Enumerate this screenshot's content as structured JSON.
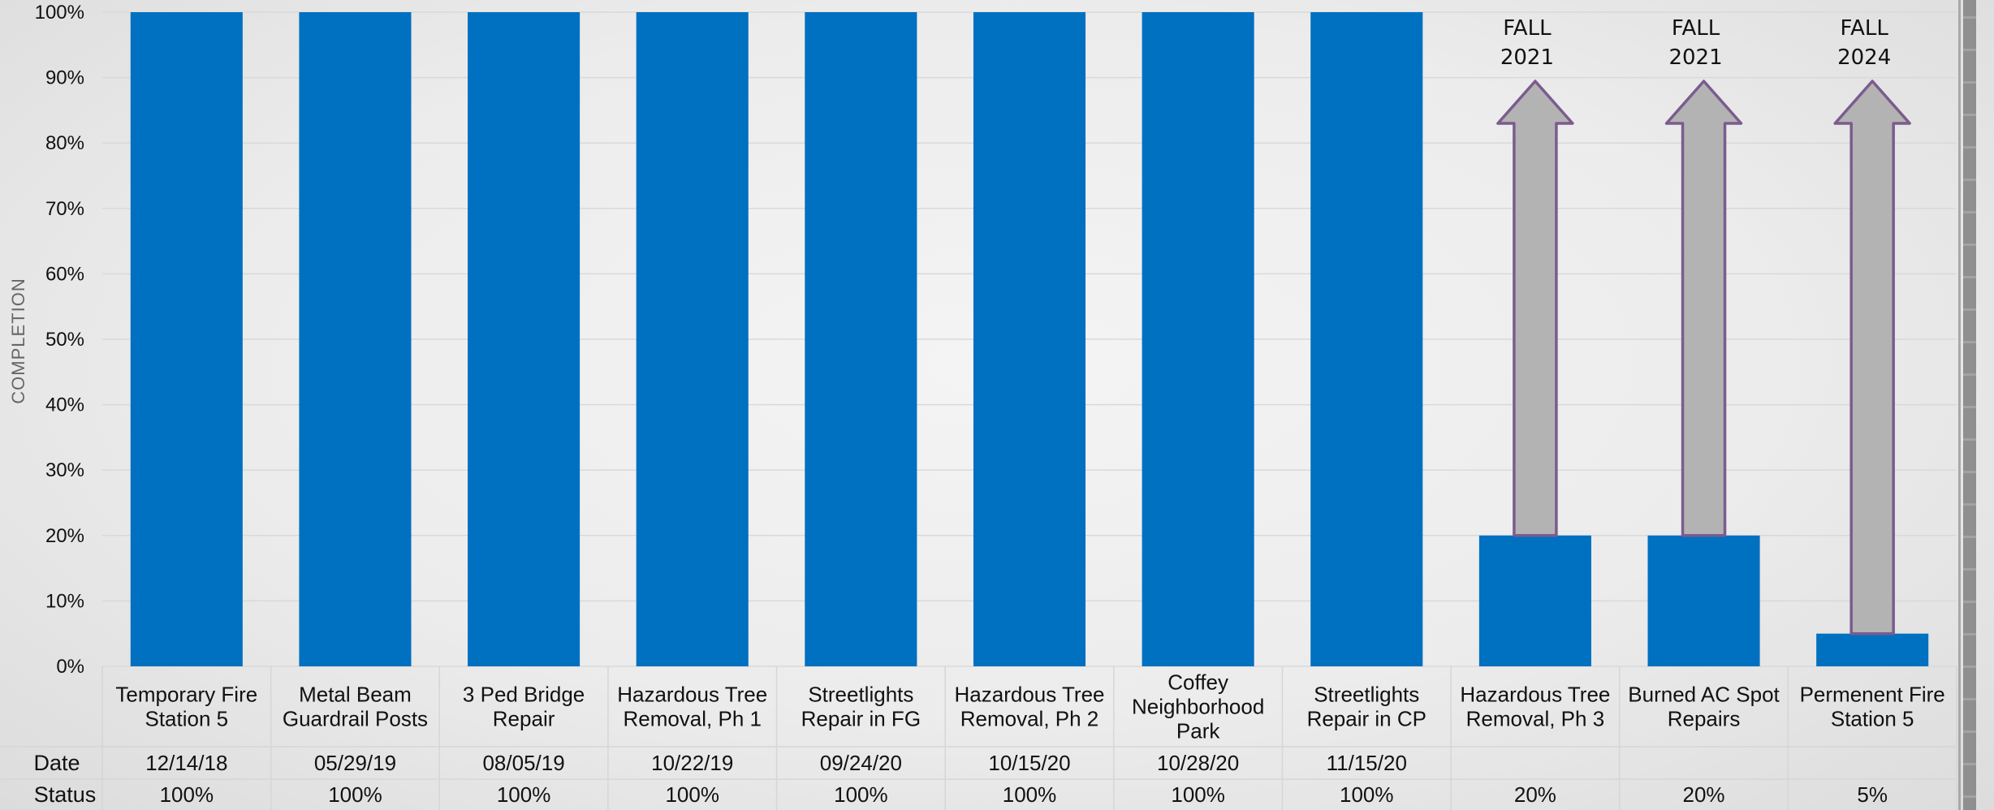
{
  "chart_data": {
    "type": "bar",
    "ylabel": "COMPLETION",
    "ylim": [
      0,
      100
    ],
    "yticks": [
      "0%",
      "10%",
      "20%",
      "30%",
      "40%",
      "50%",
      "60%",
      "70%",
      "80%",
      "90%",
      "100%"
    ],
    "grid": true,
    "categories": [
      [
        "Temporary Fire",
        "Station 5"
      ],
      [
        "Metal Beam",
        "Guardrail Posts"
      ],
      [
        "3 Ped Bridge",
        "Repair"
      ],
      [
        "Hazardous Tree",
        "Removal, Ph 1"
      ],
      [
        "Streetlights",
        "Repair in FG"
      ],
      [
        "Hazardous Tree",
        "Removal, Ph 2"
      ],
      [
        "Coffey",
        "Neighborhood",
        "Park"
      ],
      [
        "Streetlights",
        "Repair in CP"
      ],
      [
        "Hazardous Tree",
        "Removal, Ph 3"
      ],
      [
        "Burned AC Spot",
        "Repairs"
      ],
      [
        "Permenent Fire",
        "Station 5"
      ]
    ],
    "values": [
      100,
      100,
      100,
      100,
      100,
      100,
      100,
      100,
      20,
      20,
      5
    ],
    "bar_color": "#0070c0",
    "table": {
      "row_labels": [
        "Date",
        "Status"
      ],
      "dates": [
        "12/14/18",
        "05/29/19",
        "08/05/19",
        "10/22/19",
        "09/24/20",
        "10/15/20",
        "10/28/20",
        "11/15/20",
        "",
        "",
        ""
      ],
      "status": [
        "100%",
        "100%",
        "100%",
        "100%",
        "100%",
        "100%",
        "100%",
        "100%",
        "20%",
        "20%",
        "5%"
      ]
    },
    "annotations": [
      {
        "category_index": 8,
        "lines": [
          "FALL",
          "2021"
        ]
      },
      {
        "category_index": 9,
        "lines": [
          "FALL",
          "2021"
        ]
      },
      {
        "category_index": 10,
        "lines": [
          "FALL",
          "2024"
        ]
      }
    ],
    "arrow_fill": "#b3b3b3",
    "arrow_stroke": "#7b5c8e"
  }
}
